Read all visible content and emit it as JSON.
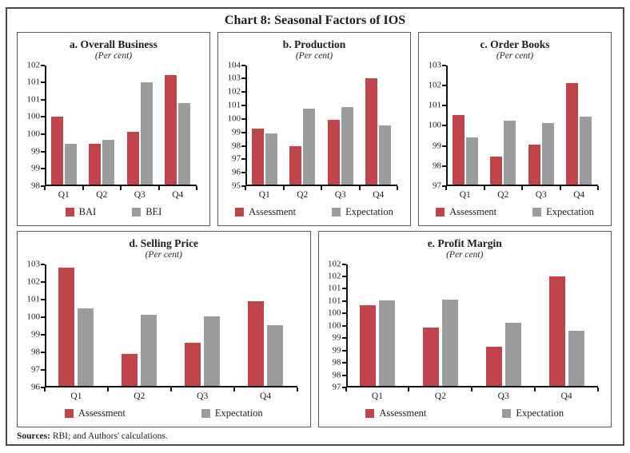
{
  "figure": {
    "title": "Chart 8: Seasonal Factors of IOS",
    "sources_label": "Sources:",
    "sources_text": " RBI; and Authors' calculations."
  },
  "colors": {
    "assessment_red": "#C2444B",
    "expectation_gray": "#9C9C9E",
    "axis": "#121212"
  },
  "chart_data": [
    {
      "id": "overall-business",
      "type": "bar",
      "row": "top",
      "title": "a. Overall Business",
      "subtitle": "(Per cent)",
      "categories": [
        "Q1",
        "Q2",
        "Q3",
        "Q4"
      ],
      "series": [
        {
          "name": "BAI",
          "color": "#C2444B",
          "values": [
            100.0,
            99.2,
            99.55,
            101.2
          ]
        },
        {
          "name": "BEI",
          "color": "#9C9C9E",
          "values": [
            99.2,
            99.3,
            101.0,
            100.4
          ]
        }
      ],
      "ylim": [
        98,
        101.5
      ],
      "y_tick_step": 0.5,
      "y_tick_labels_top_to_bottom": [
        "102",
        "101",
        "101",
        "100",
        "100",
        "99",
        "99",
        "98"
      ],
      "grid": false,
      "legend_position": "bottom"
    },
    {
      "id": "production",
      "type": "bar",
      "row": "top",
      "title": "b. Production",
      "subtitle": "(Per cent)",
      "categories": [
        "Q1",
        "Q2",
        "Q3",
        "Q4"
      ],
      "series": [
        {
          "name": "Assessment",
          "color": "#C2444B",
          "values": [
            99.2,
            97.9,
            99.9,
            103.0
          ]
        },
        {
          "name": "Expectation",
          "color": "#9C9C9E",
          "values": [
            98.85,
            100.7,
            100.85,
            99.45
          ]
        }
      ],
      "ylim": [
        95,
        104
      ],
      "y_tick_step": 1,
      "y_tick_labels_top_to_bottom": [
        "104",
        "103",
        "102",
        "101",
        "100",
        "99",
        "98",
        "97",
        "96",
        "95"
      ],
      "grid": false,
      "legend_position": "bottom"
    },
    {
      "id": "order-books",
      "type": "bar",
      "row": "top",
      "title": "c. Order Books",
      "subtitle": "(Per cent)",
      "categories": [
        "Q1",
        "Q2",
        "Q3",
        "Q4"
      ],
      "series": [
        {
          "name": "Assessment",
          "color": "#C2444B",
          "values": [
            100.5,
            98.4,
            99.0,
            102.1
          ]
        },
        {
          "name": "Expectation",
          "color": "#9C9C9E",
          "values": [
            99.35,
            100.2,
            100.1,
            100.4
          ]
        }
      ],
      "ylim": [
        97,
        103
      ],
      "y_tick_step": 1,
      "y_tick_labels_top_to_bottom": [
        "103",
        "102",
        "101",
        "100",
        "99",
        "98",
        "97"
      ],
      "grid": false,
      "legend_position": "bottom"
    },
    {
      "id": "selling-price",
      "type": "bar",
      "row": "bottom",
      "title": "d. Selling Price",
      "subtitle": "(Per cent)",
      "categories": [
        "Q1",
        "Q2",
        "Q3",
        "Q4"
      ],
      "series": [
        {
          "name": "Assessment",
          "color": "#C2444B",
          "values": [
            102.8,
            97.85,
            98.5,
            100.85
          ]
        },
        {
          "name": "Expectation",
          "color": "#9C9C9E",
          "values": [
            100.45,
            100.1,
            100.0,
            99.5
          ]
        }
      ],
      "ylim": [
        96,
        103
      ],
      "y_tick_step": 1,
      "y_tick_labels_top_to_bottom": [
        "103",
        "102",
        "101",
        "100",
        "99",
        "98",
        "97",
        "96"
      ],
      "grid": false,
      "legend_position": "bottom"
    },
    {
      "id": "profit-margin",
      "type": "bar",
      "row": "bottom",
      "title": "e. Profit Margin",
      "subtitle": "(Per cent)",
      "categories": [
        "Q1",
        "Q2",
        "Q3",
        "Q4"
      ],
      "series": [
        {
          "name": "Assessment",
          "color": "#C2444B",
          "values": [
            100.3,
            99.4,
            98.6,
            101.5
          ]
        },
        {
          "name": "Expectation",
          "color": "#9C9C9E",
          "values": [
            100.5,
            100.55,
            99.6,
            99.25
          ]
        }
      ],
      "ylim": [
        97,
        102
      ],
      "y_tick_step": 0.5,
      "y_tick_labels_top_to_bottom": [
        "102",
        "102",
        "101",
        "101",
        "100",
        "100",
        "99",
        "99",
        "98",
        "98",
        "97"
      ],
      "grid": false,
      "legend_position": "bottom"
    }
  ]
}
